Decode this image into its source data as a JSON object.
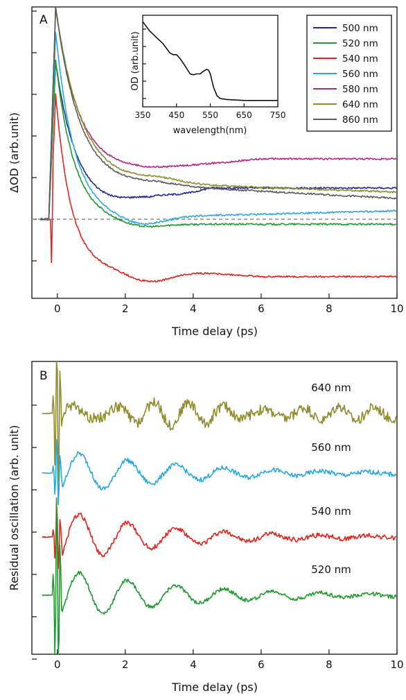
{
  "colors": {
    "500nm": "#1c2a8c",
    "520nm": "#1e9a2e",
    "540nm": "#e2231a",
    "560nm": "#2aa8de",
    "580nm": "#b5248a",
    "640nm": "#8f8c2a",
    "860nm": "#5b5b5b",
    "inset": "#111111",
    "zero_line": "#8a8a8a"
  },
  "chart_data": [
    {
      "panel": "A",
      "type": "line",
      "xlabel": "Time delay (ps)",
      "ylabel": "ΔOD (arb.unit)",
      "xlim": [
        -0.75,
        10
      ],
      "ylim": [
        -1.9,
        5.1
      ],
      "x_ticks": [
        0,
        2,
        4,
        6,
        8,
        10
      ],
      "y_ticks": [
        -1,
        0,
        1,
        2,
        3,
        4,
        5
      ],
      "zero_line": true,
      "legend": {
        "position": "top-right",
        "entries": [
          "500 nm",
          "520 nm",
          "540 nm",
          "560 nm",
          "580 nm",
          "640 nm",
          "860 nm"
        ]
      },
      "series": [
        {
          "name": "500 nm",
          "color_key": "500nm",
          "onset": -0.25,
          "peak_x": -0.05,
          "peak": 3.8,
          "tau": 0.6,
          "settle": 0.3,
          "dip_x": 2.7,
          "dip": 0.5,
          "rise": 0.035,
          "late": 0.75,
          "late_x": 4.5
        },
        {
          "name": "520 nm",
          "color_key": "520nm",
          "onset": -0.25,
          "peak_x": -0.05,
          "peak": 3.8,
          "tau": 0.55,
          "settle": -0.05,
          "dip_x": 2.5,
          "dip": -0.2,
          "rise": 0.0,
          "late": -0.12,
          "late_x": 4.0
        },
        {
          "name": "540 nm",
          "color_key": "540nm",
          "onset": -0.2,
          "peak_x": -0.05,
          "peak": 3.0,
          "tau": 0.45,
          "settle": -1.2,
          "dip_x": 2.7,
          "dip": -1.5,
          "rise": 0.0,
          "late": -1.38,
          "late_x": 6.0,
          "neg_spike": -1.05
        },
        {
          "name": "560 nm",
          "color_key": "560nm",
          "onset": -0.25,
          "peak_x": -0.05,
          "peak": 4.5,
          "tau": 0.55,
          "settle": 0.05,
          "dip_x": 2.5,
          "dip": -0.15,
          "rise": 0.0,
          "late": 0.2,
          "late_x": 10.0
        },
        {
          "name": "580 nm",
          "color_key": "580nm",
          "onset": -0.25,
          "peak_x": -0.05,
          "peak": 5.1,
          "tau": 0.65,
          "settle": 1.2,
          "dip_x": 2.7,
          "dip": 1.2,
          "rise": 0.0,
          "late": 1.45,
          "late_x": 6.0
        },
        {
          "name": "640 nm",
          "color_key": "640nm",
          "onset": -0.25,
          "peak_x": -0.05,
          "peak": 5.1,
          "tau": 0.75,
          "settle": 0.85,
          "dip_x": 3.0,
          "dip": 0.95,
          "rise": 0.0,
          "late": 0.65,
          "late_x": 10.0
        },
        {
          "name": "860 nm",
          "color_key": "860nm",
          "onset": -0.25,
          "peak_x": -0.05,
          "peak": 5.1,
          "tau": 0.7,
          "settle": 0.8,
          "dip_x": 3.0,
          "dip": 0.85,
          "rise": 0.0,
          "late": 0.5,
          "late_x": 10.0
        }
      ],
      "inset": {
        "type": "line",
        "xlabel": "wavelength(nm)",
        "ylabel": "OD (arb.unit)",
        "xlim": [
          350,
          750
        ],
        "ylim": [
          0,
          1
        ],
        "x_ticks": [
          350,
          450,
          550,
          650,
          750
        ],
        "y_tick_count": 5,
        "x": [
          350,
          370,
          390,
          410,
          430,
          440,
          450,
          460,
          475,
          490,
          500,
          510,
          520,
          530,
          540,
          545,
          550,
          560,
          570,
          580,
          600,
          650,
          700,
          750
        ],
        "y": [
          0.93,
          0.83,
          0.76,
          0.69,
          0.59,
          0.57,
          0.57,
          0.53,
          0.45,
          0.36,
          0.35,
          0.36,
          0.36,
          0.39,
          0.41,
          0.4,
          0.36,
          0.21,
          0.12,
          0.09,
          0.08,
          0.07,
          0.07,
          0.07
        ]
      }
    },
    {
      "panel": "B",
      "type": "line",
      "xlabel": "Time delay (ps)",
      "ylabel": "Residual oscillation (arb. unit)",
      "xlim": [
        -0.75,
        10
      ],
      "x_ticks": [
        0,
        2,
        4,
        6,
        8,
        10
      ],
      "y_tick_count": 7,
      "series": [
        {
          "name": "640 nm",
          "label": "640 nm",
          "color_key": "640nm",
          "offset": 3.0,
          "amp": 0.22,
          "period": 1.1,
          "damp": 12.0,
          "noise": 0.11,
          "burst": 2.2
        },
        {
          "name": "560 nm",
          "label": "560 nm",
          "color_key": "560nm",
          "offset": 2.0,
          "amp": 0.48,
          "period": 1.42,
          "damp": 3.2,
          "noise": 0.05,
          "burst": 0.9
        },
        {
          "name": "540 nm",
          "label": "540 nm",
          "color_key": "540nm",
          "offset": 1.0,
          "amp": 0.55,
          "period": 1.42,
          "damp": 3.0,
          "noise": 0.05,
          "burst": 0.9
        },
        {
          "name": "520 nm",
          "label": "520 nm",
          "color_key": "520nm",
          "offset": 0.0,
          "amp": 0.55,
          "period": 1.42,
          "damp": 3.3,
          "noise": 0.04,
          "burst": 2.6
        }
      ]
    }
  ]
}
